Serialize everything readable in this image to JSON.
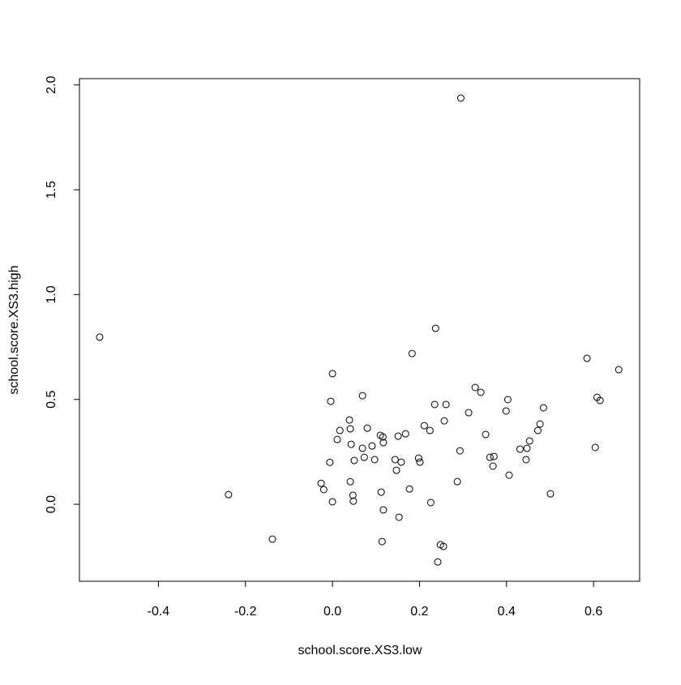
{
  "chart_data": {
    "type": "scatter",
    "xlabel": "school.score.XS3.low",
    "ylabel": "school.score.XS3.high",
    "color": "#000000",
    "xlim": [
      -0.5815,
      0.706
    ],
    "ylim": [
      -0.367,
      2.03
    ],
    "xticks": [
      -0.4,
      -0.2,
      {
        "value": 0,
        "label": "0.0"
      },
      0.2,
      0.4,
      0.6
    ],
    "yticks": [
      {
        "value": 0,
        "label": "0.0"
      },
      0.5,
      {
        "value": 1,
        "label": "1.0"
      },
      1.5,
      {
        "value": 2,
        "label": "2.0"
      }
    ],
    "x": [
      -0.535,
      -0.239,
      -0.138,
      0.295,
      0.237,
      0.183,
      0.0,
      -0.004,
      0.069,
      -0.026,
      -0.02,
      -0.006,
      0.0,
      0.017,
      0.011,
      0.039,
      0.041,
      0.043,
      0.05,
      0.069,
      0.073,
      0.08,
      0.091,
      0.097,
      0.041,
      0.047,
      0.048,
      0.11,
      0.116,
      0.117,
      0.112,
      0.117,
      0.114,
      0.144,
      0.147,
      0.151,
      0.158,
      0.168,
      0.153,
      0.177,
      0.198,
      0.201,
      0.211,
      0.224,
      0.226,
      0.235,
      0.248,
      0.255,
      0.242,
      0.257,
      0.261,
      0.293,
      0.287,
      0.313,
      0.328,
      0.341,
      0.352,
      0.362,
      0.371,
      0.369,
      0.403,
      0.399,
      0.406,
      0.431,
      0.445,
      0.447,
      0.453,
      0.472,
      0.477,
      0.485,
      0.501,
      0.585,
      0.604,
      0.608,
      0.615,
      0.658
    ],
    "y": [
      0.797,
      0.046,
      -0.166,
      1.937,
      0.839,
      0.719,
      0.623,
      0.491,
      0.518,
      0.1,
      0.07,
      0.2,
      0.012,
      0.352,
      0.309,
      0.402,
      0.36,
      0.286,
      0.209,
      0.267,
      0.224,
      0.363,
      0.278,
      0.213,
      0.108,
      0.043,
      0.015,
      0.329,
      0.321,
      0.294,
      0.058,
      -0.027,
      -0.178,
      0.213,
      0.162,
      0.325,
      0.201,
      0.336,
      -0.062,
      0.073,
      0.22,
      0.201,
      0.375,
      0.352,
      0.008,
      0.476,
      -0.193,
      -0.201,
      -0.275,
      0.398,
      0.476,
      0.255,
      0.108,
      0.437,
      0.557,
      0.534,
      0.333,
      0.224,
      0.228,
      0.182,
      0.499,
      0.445,
      0.139,
      0.263,
      0.213,
      0.267,
      0.302,
      0.352,
      0.383,
      0.46,
      0.05,
      0.696,
      0.271,
      0.51,
      0.495,
      0.642
    ]
  }
}
